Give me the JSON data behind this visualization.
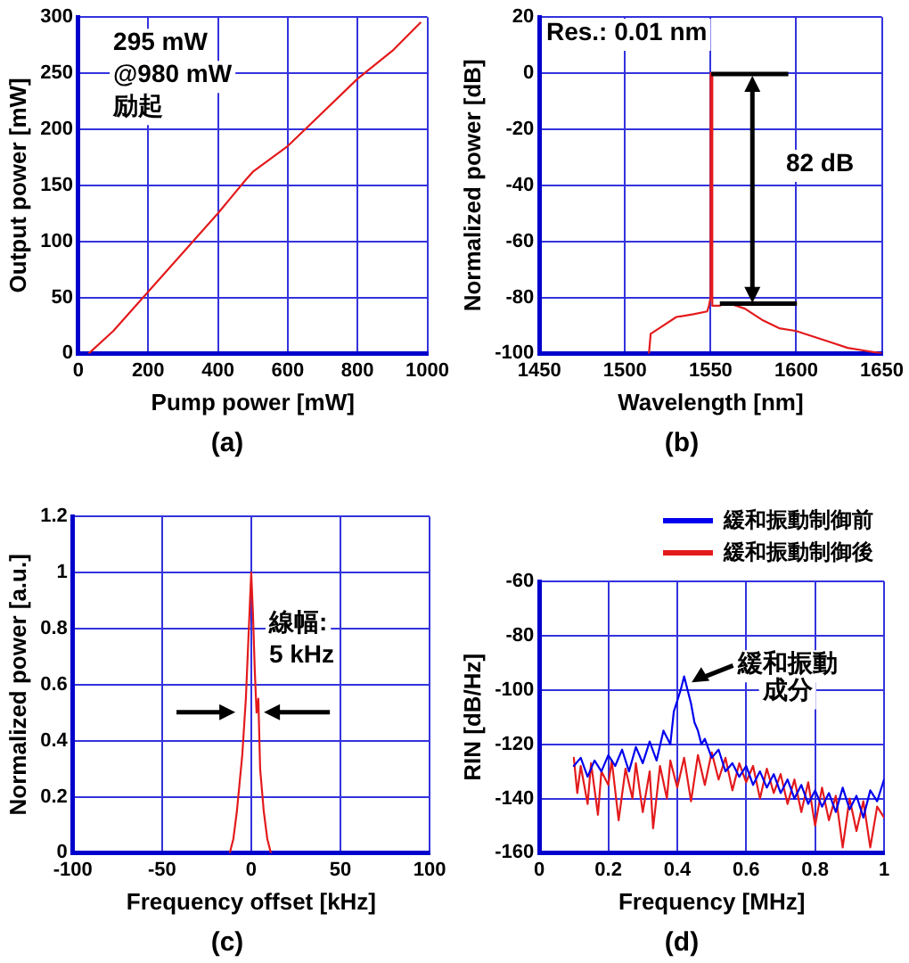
{
  "chart_data": [
    {
      "type": "line",
      "xlabel": "Pump power [mW]",
      "ylabel": "Output power [mW]",
      "xlim": [
        0,
        1000
      ],
      "xticks": [
        0,
        200,
        400,
        600,
        800,
        1000
      ],
      "ylim": [
        0,
        300
      ],
      "yticks": [
        0,
        50,
        100,
        150,
        200,
        250,
        300
      ],
      "grid": true,
      "marker": "none",
      "line_style": "solid",
      "annotations": [
        "295 mW\n@980 mW\n励起",
        "(a)"
      ],
      "series": [
        {
          "color": "#e31a1c",
          "x": [
            30,
            100,
            200,
            300,
            400,
            480,
            500,
            600,
            650,
            800,
            900,
            980
          ],
          "values": [
            0,
            20,
            55,
            90,
            125,
            155,
            162,
            185,
            200,
            245,
            270,
            295
          ]
        }
      ]
    },
    {
      "type": "line",
      "xlabel": "Wavelength [nm]",
      "ylabel": "Normalized power [dB]",
      "xlim": [
        1450,
        1650
      ],
      "xticks": [
        1450,
        1500,
        1550,
        1600,
        1650
      ],
      "ylim": [
        -100,
        20
      ],
      "yticks": [
        -100,
        -80,
        -60,
        -40,
        -20,
        0,
        20
      ],
      "grid": true,
      "marker": "none",
      "line_style": "solid",
      "annotations": [
        "Res.: 0.01 nm",
        "82 dB",
        "(b)"
      ],
      "series": [
        {
          "color": "#e31a1c",
          "x": [
            1514,
            1515,
            1520,
            1530,
            1540,
            1548,
            1549,
            1550,
            1550,
            1550.5,
            1551,
            1555,
            1560,
            1570,
            1580,
            1590,
            1600,
            1610,
            1620,
            1630,
            1640,
            1650
          ],
          "values": [
            -100,
            -93,
            -91,
            -87,
            -86,
            -85,
            -83,
            -80,
            0,
            0,
            -83,
            -83,
            -82,
            -84,
            -88,
            -91,
            -92,
            -94,
            -96,
            -98,
            -99,
            -100
          ]
        }
      ]
    },
    {
      "type": "line",
      "xlabel": "Frequency offset [kHz]",
      "ylabel": "Normalized power [a.u.]",
      "xlim": [
        -100,
        100
      ],
      "xticks": [
        -100,
        -50,
        0,
        50,
        100
      ],
      "ylim": [
        0,
        1.2
      ],
      "yticks": [
        0,
        0.2,
        0.4,
        0.6,
        0.8,
        1,
        1.2
      ],
      "grid": true,
      "marker": "none",
      "line_style": "solid",
      "annotations": [
        "線幅:\n5 kHz",
        "(c)"
      ],
      "series": [
        {
          "color": "#e31a1c",
          "x": [
            -12,
            -10,
            -8,
            -5,
            -3,
            -2,
            -1,
            0,
            1,
            2,
            3,
            4,
            5,
            7,
            9,
            11
          ],
          "values": [
            0,
            0.05,
            0.15,
            0.35,
            0.55,
            0.7,
            0.85,
            1.0,
            0.85,
            0.65,
            0.5,
            0.55,
            0.3,
            0.15,
            0.05,
            0
          ]
        }
      ]
    },
    {
      "type": "line",
      "xlabel": "Frequency [MHz]",
      "ylabel": "RIN [dB/Hz]",
      "xlim": [
        0,
        1
      ],
      "xticks": [
        0,
        0.2,
        0.4,
        0.6,
        0.8,
        1
      ],
      "ylim": [
        -160,
        -60
      ],
      "yticks": [
        -160,
        -140,
        -120,
        -100,
        -80,
        -60
      ],
      "grid": true,
      "legend": "top right",
      "marker": "none",
      "line_style": "solid",
      "annotations": [
        "緩和振動",
        "成分",
        "(d)"
      ],
      "series": [
        {
          "name": "緩和振動制御前",
          "color": "#0000ee",
          "x": [
            0.1,
            0.12,
            0.14,
            0.16,
            0.18,
            0.2,
            0.22,
            0.24,
            0.26,
            0.28,
            0.3,
            0.32,
            0.34,
            0.36,
            0.38,
            0.39,
            0.41,
            0.42,
            0.43,
            0.44,
            0.45,
            0.46,
            0.47,
            0.48,
            0.5,
            0.52,
            0.54,
            0.56,
            0.58,
            0.6,
            0.62,
            0.64,
            0.66,
            0.68,
            0.7,
            0.72,
            0.74,
            0.76,
            0.78,
            0.8,
            0.82,
            0.84,
            0.86,
            0.88,
            0.9,
            0.92,
            0.94,
            0.96,
            0.98,
            1.0
          ],
          "values": [
            -128,
            -125,
            -132,
            -126,
            -130,
            -124,
            -128,
            -122,
            -130,
            -121,
            -127,
            -119,
            -126,
            -115,
            -120,
            -108,
            -100,
            -95,
            -100,
            -105,
            -112,
            -115,
            -120,
            -118,
            -125,
            -122,
            -130,
            -127,
            -132,
            -128,
            -135,
            -130,
            -136,
            -131,
            -138,
            -133,
            -140,
            -135,
            -142,
            -137,
            -143,
            -138,
            -145,
            -136,
            -144,
            -139,
            -147,
            -137,
            -141,
            -133
          ]
        },
        {
          "name": "緩和振動制御後",
          "color": "#e31a1c",
          "x": [
            0.1,
            0.11,
            0.12,
            0.14,
            0.15,
            0.17,
            0.18,
            0.2,
            0.21,
            0.23,
            0.25,
            0.27,
            0.28,
            0.3,
            0.32,
            0.33,
            0.35,
            0.37,
            0.38,
            0.4,
            0.42,
            0.44,
            0.46,
            0.48,
            0.5,
            0.52,
            0.54,
            0.56,
            0.58,
            0.6,
            0.62,
            0.64,
            0.66,
            0.68,
            0.7,
            0.72,
            0.74,
            0.76,
            0.78,
            0.8,
            0.82,
            0.84,
            0.86,
            0.88,
            0.9,
            0.92,
            0.94,
            0.96,
            0.98,
            1.0
          ],
          "values": [
            -125,
            -138,
            -128,
            -142,
            -127,
            -146,
            -130,
            -135,
            -126,
            -148,
            -129,
            -140,
            -127,
            -145,
            -130,
            -151,
            -128,
            -140,
            -126,
            -136,
            -125,
            -141,
            -124,
            -135,
            -123,
            -133,
            -125,
            -137,
            -127,
            -134,
            -128,
            -140,
            -129,
            -138,
            -131,
            -142,
            -133,
            -145,
            -134,
            -150,
            -136,
            -148,
            -139,
            -158,
            -140,
            -152,
            -141,
            -158,
            -143,
            -147
          ]
        }
      ]
    }
  ]
}
